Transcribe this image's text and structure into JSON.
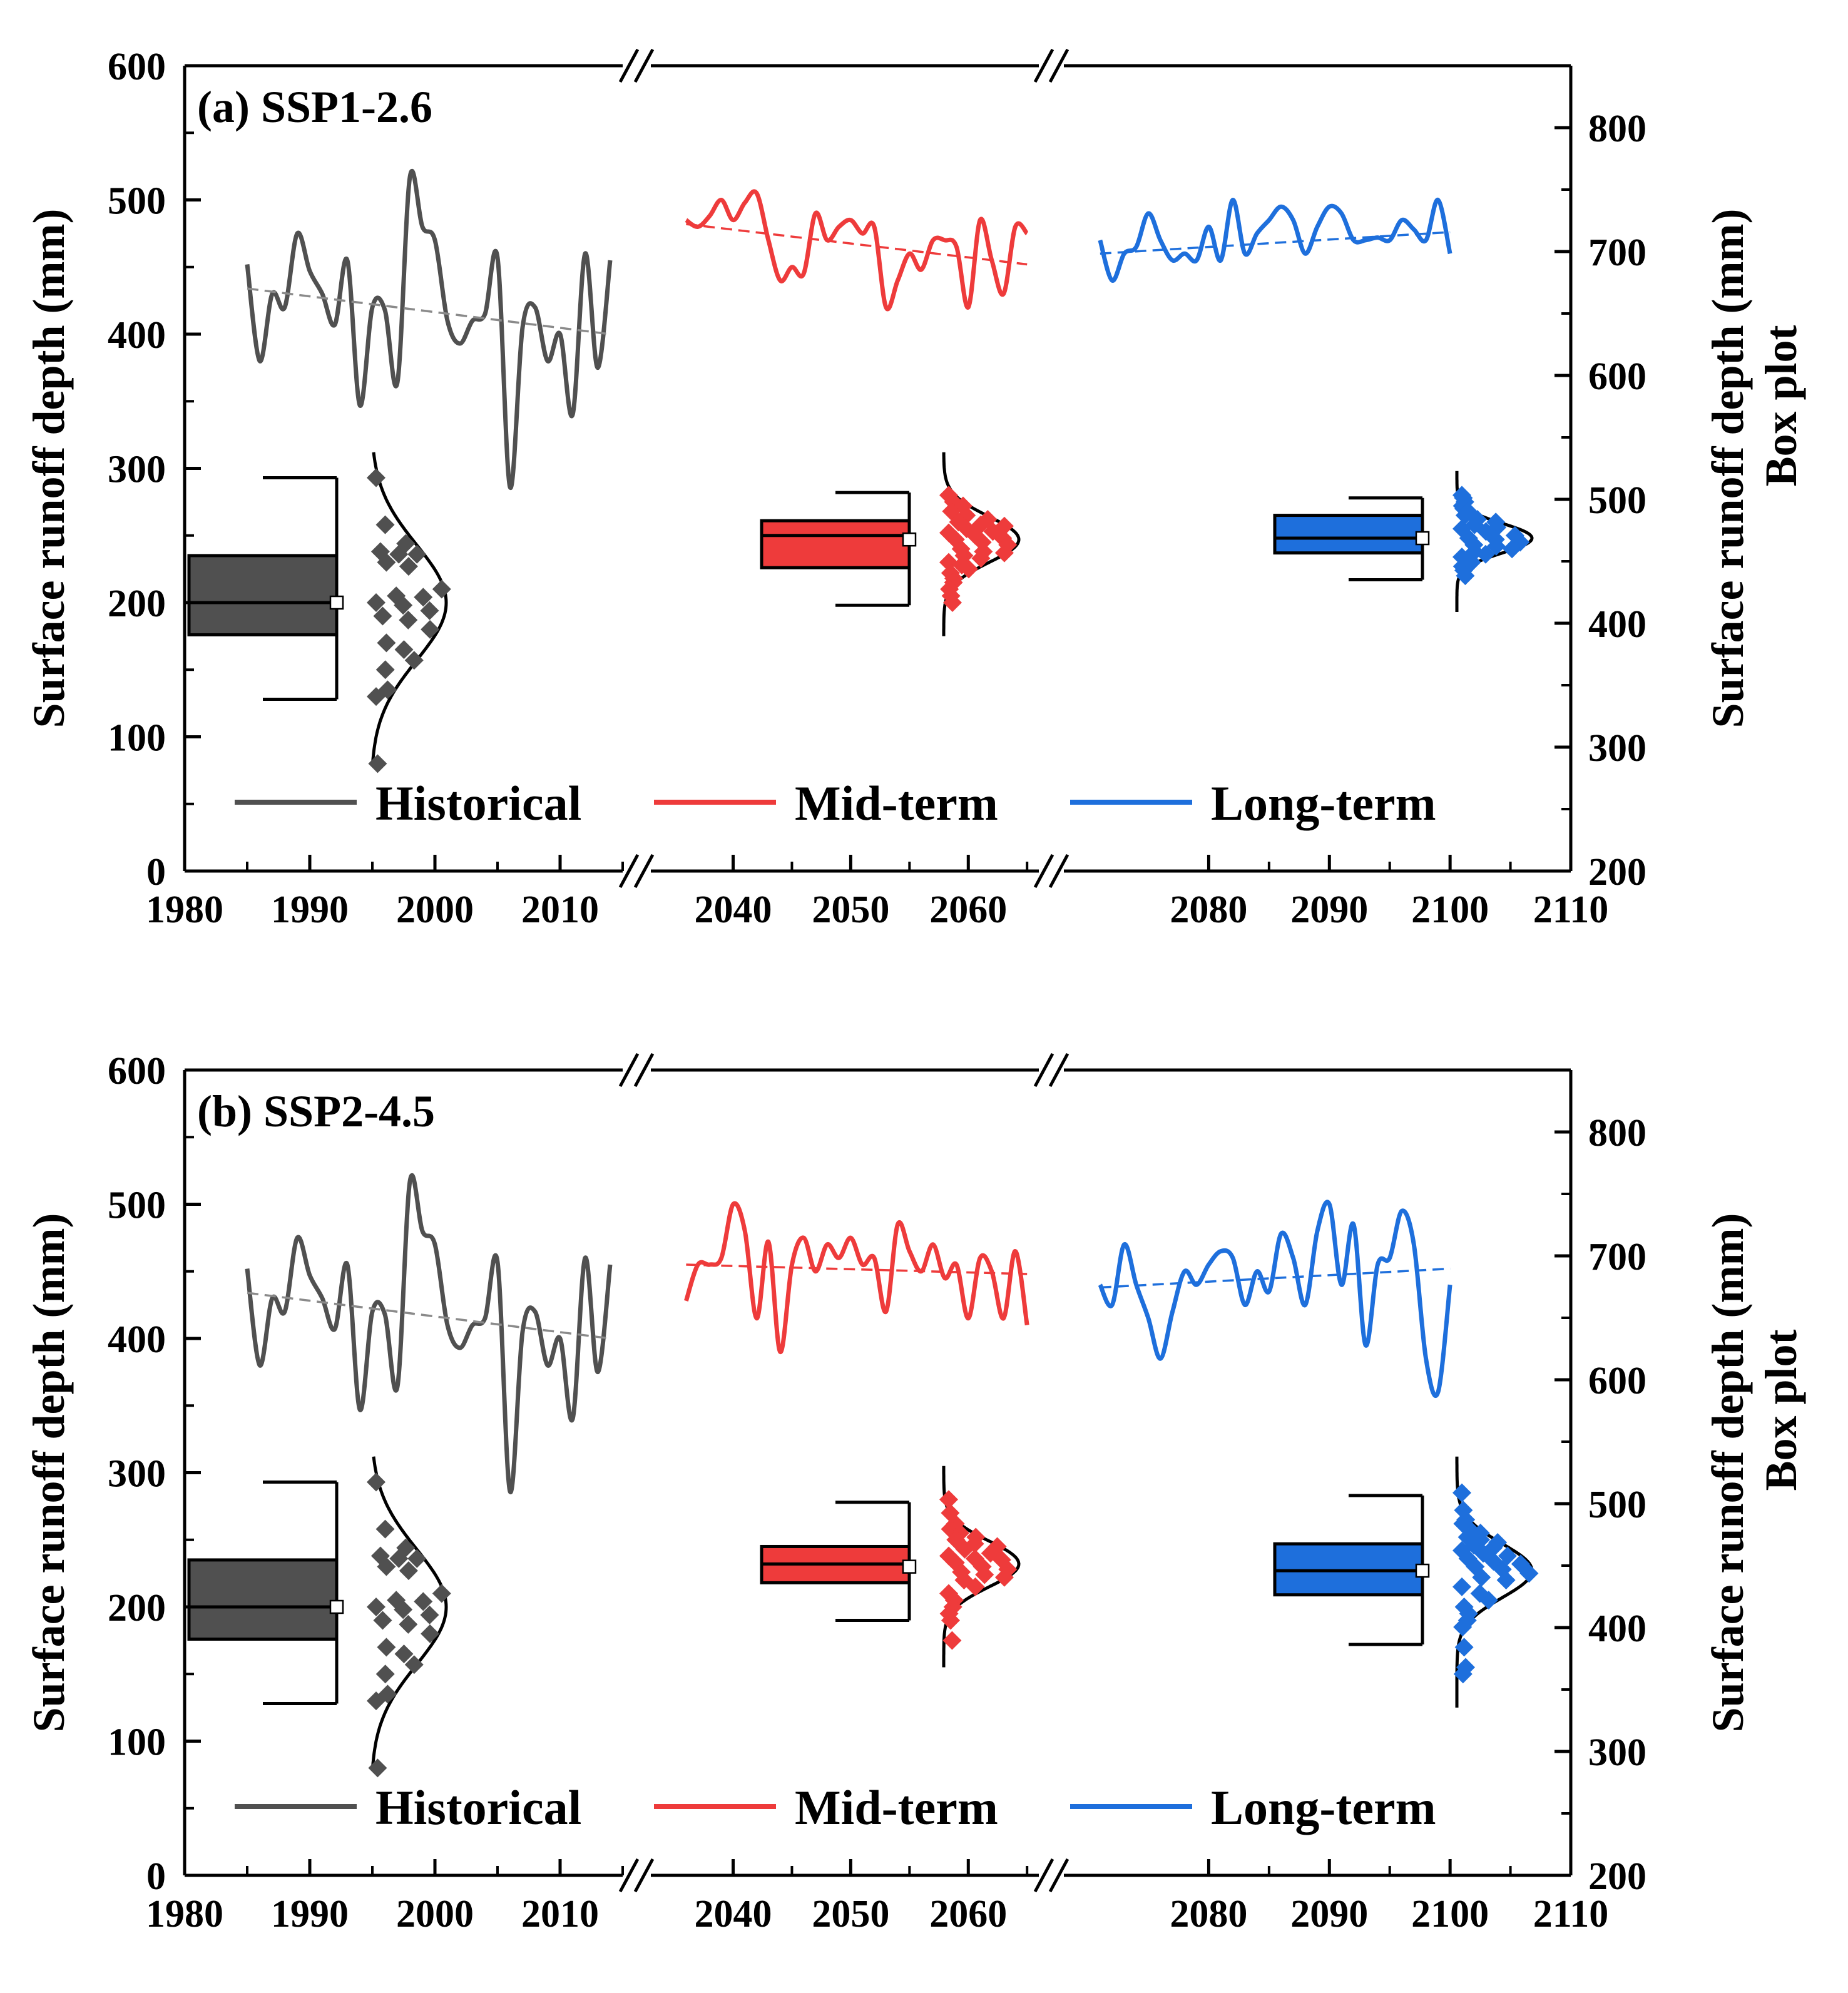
{
  "colors": {
    "historical": "#505050",
    "mid": "#EE3B3B",
    "long": "#1E6FDC",
    "trend_hist": "#8A8A8A",
    "frame": "#000000"
  },
  "chart_data": [
    {
      "type": "line",
      "title": "(a) SSP1-2.6",
      "ylabel": "Surface runoff depth (mm)",
      "y2label": "Surface runoff depth (mm)",
      "y2sublabel": "Box plot",
      "ylim": [
        0,
        600
      ],
      "y2lim": [
        200,
        850
      ],
      "yticks": [
        0,
        100,
        200,
        300,
        400,
        500,
        600
      ],
      "y2ticks": [
        200,
        300,
        400,
        500,
        600,
        700,
        800
      ],
      "xtick_groups": [
        [
          1980,
          1990,
          2000,
          2010
        ],
        [
          2040,
          2050,
          2060
        ],
        [
          2080,
          2090,
          2100,
          2110
        ]
      ],
      "legend": [
        "Historical",
        "Mid-term",
        "Long-term"
      ],
      "series": [
        {
          "name": "Historical",
          "color_key": "historical",
          "trend_color_key": "trend_hist",
          "x": [
            1985,
            1986,
            1987,
            1988,
            1989,
            1990,
            1991,
            1992,
            1993,
            1994,
            1995,
            1996,
            1997,
            1998,
            1999,
            2000,
            2001,
            2002,
            2003,
            2004,
            2005,
            2006,
            2007,
            2008,
            2009,
            2010,
            2011,
            2012,
            2013,
            2014
          ],
          "values": [
            452,
            380,
            430,
            420,
            475,
            447,
            430,
            407,
            455,
            347,
            420,
            418,
            364,
            517,
            480,
            470,
            410,
            393,
            410,
            415,
            457,
            286,
            405,
            420,
            380,
            400,
            340,
            460,
            375,
            455
          ],
          "trend": [
            434,
            400
          ],
          "points": [
            293,
            258,
            244,
            238,
            236,
            236,
            230,
            227,
            210,
            205,
            204,
            200,
            198,
            194,
            190,
            187,
            180,
            170,
            165,
            157,
            150,
            135,
            130,
            80
          ],
          "box": {
            "whisker_low": 128,
            "q1": 176,
            "median": 200,
            "mean": 200,
            "q3": 235,
            "whisker_high": 293
          },
          "normal": {
            "mean": 200,
            "sd": 43,
            "ymin": 80,
            "ymax": 312
          }
        },
        {
          "name": "Mid-term",
          "color_key": "mid",
          "trend_color_key": "mid",
          "x": [
            2036,
            2037,
            2038,
            2039,
            2040,
            2041,
            2042,
            2043,
            2044,
            2045,
            2046,
            2047,
            2048,
            2049,
            2050,
            2051,
            2052,
            2053,
            2054,
            2055,
            2056,
            2057,
            2058,
            2059,
            2060,
            2061,
            2062,
            2063,
            2064,
            2065
          ],
          "values": [
            485,
            480,
            488,
            500,
            485,
            498,
            505,
            470,
            440,
            450,
            445,
            490,
            470,
            480,
            485,
            475,
            480,
            420,
            440,
            460,
            448,
            470,
            470,
            465,
            420,
            485,
            455,
            430,
            480,
            475
          ],
          "trend": [
            482,
            452
          ],
          "points": [
            280,
            275,
            272,
            268,
            265,
            262,
            260,
            258,
            257,
            255,
            253,
            252,
            250,
            248,
            247,
            245,
            243,
            240,
            238,
            237,
            235,
            233,
            230,
            228,
            225,
            222,
            218,
            215,
            210,
            205,
            200
          ],
          "box": {
            "whisker_low": 198,
            "q1": 226,
            "median": 250,
            "mean": 247,
            "q3": 261,
            "whisker_high": 282
          },
          "normal": {
            "mean": 247,
            "sd": 17,
            "ymin": 175,
            "ymax": 312
          }
        },
        {
          "name": "Long-term",
          "color_key": "long",
          "trend_color_key": "long",
          "x": [
            2071,
            2072,
            2073,
            2074,
            2075,
            2076,
            2077,
            2078,
            2079,
            2080,
            2081,
            2082,
            2083,
            2084,
            2085,
            2086,
            2087,
            2088,
            2089,
            2090,
            2091,
            2092,
            2093,
            2094,
            2095,
            2096,
            2097,
            2098,
            2099,
            2100
          ],
          "values": [
            470,
            440,
            460,
            465,
            490,
            470,
            455,
            460,
            455,
            480,
            455,
            500,
            460,
            475,
            485,
            495,
            485,
            460,
            480,
            495,
            490,
            470,
            470,
            472,
            470,
            485,
            478,
            470,
            500,
            460
          ],
          "trend": [
            460,
            476
          ],
          "points": [
            280,
            278,
            275,
            272,
            270,
            268,
            265,
            262,
            260,
            258,
            256,
            255,
            253,
            250,
            248,
            247,
            245,
            243,
            242,
            240,
            238,
            236,
            234,
            232,
            230,
            227,
            224,
            220
          ],
          "box": {
            "whisker_low": 217,
            "q1": 237,
            "median": 248,
            "mean": 248,
            "q3": 265,
            "whisker_high": 278
          },
          "normal": {
            "mean": 248,
            "sd": 11,
            "ymin": 193,
            "ymax": 298
          }
        }
      ]
    },
    {
      "type": "line",
      "title": "(b) SSP2-4.5",
      "ylabel": "Surface runoff depth (mm)",
      "y2label": "Surface runoff depth (mm)",
      "y2sublabel": "Box plot",
      "ylim": [
        0,
        600
      ],
      "y2lim": [
        200,
        850
      ],
      "yticks": [
        0,
        100,
        200,
        300,
        400,
        500,
        600
      ],
      "y2ticks": [
        200,
        300,
        400,
        500,
        600,
        700,
        800
      ],
      "xtick_groups": [
        [
          1980,
          1990,
          2000,
          2010
        ],
        [
          2040,
          2050,
          2060
        ],
        [
          2080,
          2090,
          2100,
          2110
        ]
      ],
      "legend": [
        "Historical",
        "Mid-term",
        "Long-term"
      ],
      "series": [
        {
          "name": "Historical",
          "color_key": "historical",
          "trend_color_key": "trend_hist",
          "x": [
            1985,
            1986,
            1987,
            1988,
            1989,
            1990,
            1991,
            1992,
            1993,
            1994,
            1995,
            1996,
            1997,
            1998,
            1999,
            2000,
            2001,
            2002,
            2003,
            2004,
            2005,
            2006,
            2007,
            2008,
            2009,
            2010,
            2011,
            2012,
            2013,
            2014
          ],
          "values": [
            452,
            380,
            430,
            420,
            475,
            447,
            430,
            407,
            455,
            347,
            420,
            418,
            364,
            517,
            480,
            470,
            410,
            393,
            410,
            415,
            457,
            286,
            405,
            420,
            380,
            400,
            340,
            460,
            375,
            455
          ],
          "trend": [
            434,
            400
          ],
          "points": [
            293,
            258,
            244,
            238,
            236,
            236,
            230,
            227,
            210,
            205,
            204,
            200,
            198,
            194,
            190,
            187,
            180,
            170,
            165,
            157,
            150,
            135,
            130,
            80
          ],
          "box": {
            "whisker_low": 128,
            "q1": 176,
            "median": 200,
            "mean": 200,
            "q3": 235,
            "whisker_high": 293
          },
          "normal": {
            "mean": 200,
            "sd": 43,
            "ymin": 80,
            "ymax": 312
          }
        },
        {
          "name": "Mid-term",
          "color_key": "mid",
          "trend_color_key": "mid",
          "x": [
            2036,
            2037,
            2038,
            2039,
            2040,
            2041,
            2042,
            2043,
            2044,
            2045,
            2046,
            2047,
            2048,
            2049,
            2050,
            2051,
            2052,
            2053,
            2054,
            2055,
            2056,
            2057,
            2058,
            2059,
            2060,
            2061,
            2062,
            2063,
            2064,
            2065
          ],
          "values": [
            428,
            455,
            455,
            460,
            500,
            480,
            415,
            472,
            390,
            455,
            475,
            450,
            470,
            460,
            475,
            455,
            460,
            420,
            485,
            465,
            450,
            470,
            445,
            455,
            415,
            460,
            450,
            415,
            465,
            410
          ],
          "trend": [
            455,
            448
          ],
          "points": [
            280,
            270,
            262,
            258,
            255,
            252,
            250,
            247,
            245,
            243,
            240,
            238,
            236,
            235,
            233,
            230,
            228,
            226,
            224,
            222,
            220,
            215,
            210,
            205,
            200,
            195,
            190,
            175
          ],
          "box": {
            "whisker_low": 190,
            "q1": 218,
            "median": 232,
            "mean": 230,
            "q3": 245,
            "whisker_high": 278
          },
          "normal": {
            "mean": 232,
            "sd": 17,
            "ymin": 155,
            "ymax": 305
          }
        },
        {
          "name": "Long-term",
          "color_key": "long",
          "trend_color_key": "long",
          "x": [
            2071,
            2072,
            2073,
            2074,
            2075,
            2076,
            2077,
            2078,
            2079,
            2080,
            2081,
            2082,
            2083,
            2084,
            2085,
            2086,
            2087,
            2088,
            2089,
            2090,
            2091,
            2092,
            2093,
            2094,
            2095,
            2096,
            2097,
            2098,
            2099,
            2100
          ],
          "values": [
            440,
            425,
            470,
            440,
            415,
            385,
            420,
            450,
            440,
            455,
            465,
            460,
            425,
            450,
            435,
            478,
            460,
            425,
            480,
            500,
            440,
            485,
            395,
            455,
            460,
            495,
            470,
            385,
            360,
            440
          ],
          "trend": [
            438,
            452
          ],
          "points": [
            285,
            272,
            265,
            262,
            258,
            255,
            252,
            250,
            248,
            246,
            244,
            242,
            240,
            238,
            236,
            234,
            232,
            230,
            228,
            225,
            222,
            220,
            215,
            210,
            205,
            200,
            195,
            190,
            185,
            170,
            155,
            150
          ],
          "box": {
            "whisker_low": 172,
            "q1": 209,
            "median": 227,
            "mean": 227,
            "q3": 247,
            "whisker_high": 283
          },
          "normal": {
            "mean": 227,
            "sd": 20,
            "ymin": 125,
            "ymax": 312
          }
        }
      ]
    }
  ]
}
